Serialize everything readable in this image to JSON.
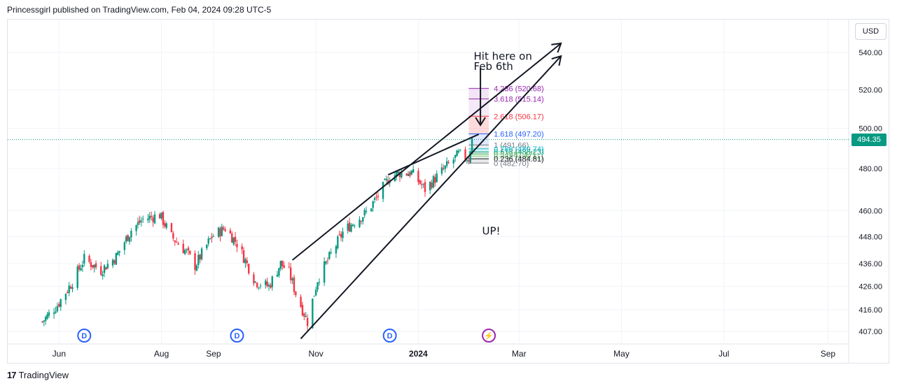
{
  "header": {
    "publisher_line": "Princessgirl published on TradingView.com, Feb 04, 2024 09:28 UTC-5"
  },
  "toolbar": {
    "currency": "USD"
  },
  "footer": {
    "brand": "TradingView",
    "logo_mark": "17"
  },
  "colors": {
    "up": "#089981",
    "down": "#f23645",
    "grid": "#f0f3fa",
    "axis_text": "#131722",
    "dividend": "#2962ff",
    "split": "#9c27b0"
  },
  "chart_data": {
    "type": "candlestick",
    "title": "",
    "y_axis": {
      "scale": "log",
      "min": 404,
      "max": 560,
      "ticks": [
        540,
        520,
        500,
        480,
        460,
        448,
        436,
        426,
        416,
        407
      ]
    },
    "x_axis": {
      "ticks": [
        "Jun",
        "Aug",
        "Sep",
        "Nov",
        "2024",
        "Mar",
        "May",
        "Jul",
        "Sep"
      ]
    },
    "last_price": {
      "value": 494.35,
      "label": "494.35"
    },
    "price_path": [
      [
        "2023-05-22",
        411
      ],
      [
        "2023-05-31",
        418
      ],
      [
        "2023-06-09",
        428
      ],
      [
        "2023-06-16",
        438
      ],
      [
        "2023-06-26",
        433
      ],
      [
        "2023-07-05",
        439
      ],
      [
        "2023-07-14",
        451
      ],
      [
        "2023-07-21",
        456
      ],
      [
        "2023-07-31",
        458
      ],
      [
        "2023-08-07",
        448
      ],
      [
        "2023-08-16",
        441
      ],
      [
        "2023-08-21",
        435
      ],
      [
        "2023-08-31",
        448
      ],
      [
        "2023-09-08",
        452
      ],
      [
        "2023-09-15",
        445
      ],
      [
        "2023-09-26",
        428
      ],
      [
        "2023-10-04",
        426
      ],
      [
        "2023-10-11",
        436
      ],
      [
        "2023-10-16",
        432
      ],
      [
        "2023-10-20",
        423
      ],
      [
        "2023-10-27",
        411
      ],
      [
        "2023-11-02",
        429
      ],
      [
        "2023-11-10",
        440
      ],
      [
        "2023-11-17",
        450
      ],
      [
        "2023-11-24",
        455
      ],
      [
        "2023-12-01",
        459
      ],
      [
        "2023-12-08",
        467
      ],
      [
        "2023-12-15",
        476
      ],
      [
        "2023-12-21",
        478
      ],
      [
        "2023-12-28",
        478
      ],
      [
        "2024-01-05",
        470
      ],
      [
        "2024-01-12",
        476
      ],
      [
        "2024-01-19",
        482
      ],
      [
        "2024-01-25",
        487
      ],
      [
        "2024-01-31",
        485
      ],
      [
        "2024-02-02",
        494.35
      ]
    ],
    "fibonacci": {
      "start_date": "2024-01-31",
      "end_date": "2024-02-12",
      "levels": [
        {
          "label": "4.236 (520.68)",
          "price": 520.68,
          "color": "#9c27b0",
          "fill": "rgba(156,39,176,0.12)"
        },
        {
          "label": "3.618 (515.14)",
          "price": 515.14,
          "color": "#9c27b0",
          "fill": "rgba(156,39,176,0.10)"
        },
        {
          "label": "2.618 (506.17)",
          "price": 506.17,
          "color": "#f23645",
          "fill": "rgba(242,54,69,0.18)"
        },
        {
          "label": "1.618 (497.20)",
          "price": 497.2,
          "color": "#2962ff",
          "fill": "rgba(41,98,255,0.15)"
        },
        {
          "label": "1 (491.66)",
          "price": 491.66,
          "color": "#787b86",
          "fill": "rgba(120,123,134,0.15)"
        },
        {
          "label": "0.786 (489.74)",
          "price": 489.74,
          "color": "#00bcd4",
          "fill": "rgba(0,188,212,0.15)"
        },
        {
          "label": "0.618 (488.23)",
          "price": 488.23,
          "color": "#089981",
          "fill": "rgba(8,153,129,0.15)"
        },
        {
          "label": "0.5 (487.17)",
          "price": 487.17,
          "color": "#4caf50",
          "fill": "rgba(76,175,80,0.15)"
        },
        {
          "label": "0.382 (486.11)",
          "price": 486.11,
          "color": "#81c784",
          "fill": "rgba(129,199,132,0.15)"
        },
        {
          "label": "0.236 (484.81)",
          "price": 484.81,
          "color": "#131722",
          "fill": "rgba(120,123,134,0.18)"
        },
        {
          "label": "0 (482.70)",
          "price": 482.7,
          "color": "#787b86",
          "fill": "rgba(120,123,134,0.20)"
        }
      ]
    },
    "trendlines": [
      {
        "name": "upper-channel-line",
        "from": [
          "2023-10-18",
          437.5
        ],
        "to": [
          "2024-03-26",
          545
        ]
      },
      {
        "name": "lower-channel-line",
        "from": [
          "2023-10-23",
          404
        ],
        "to": [
          "2024-03-26",
          538
        ]
      },
      {
        "name": "mid-channel-line",
        "from": [
          "2023-12-14",
          477
        ],
        "to": [
          "2024-02-06",
          497
        ]
      }
    ],
    "annotations": [
      {
        "text": "Hit here on",
        "date": "2024-02-03",
        "price": 536
      },
      {
        "text": "Feb 6th",
        "date": "2024-02-03",
        "price": 530.5
      },
      {
        "text": "UP!",
        "date": "2024-02-08",
        "price": 449
      }
    ],
    "event_markers": [
      {
        "date": "2023-06-16",
        "label": "D"
      },
      {
        "date": "2023-09-15",
        "label": "D"
      },
      {
        "date": "2023-12-15",
        "label": "D"
      },
      {
        "date": "2024-02-12",
        "label": "⚡"
      }
    ]
  }
}
